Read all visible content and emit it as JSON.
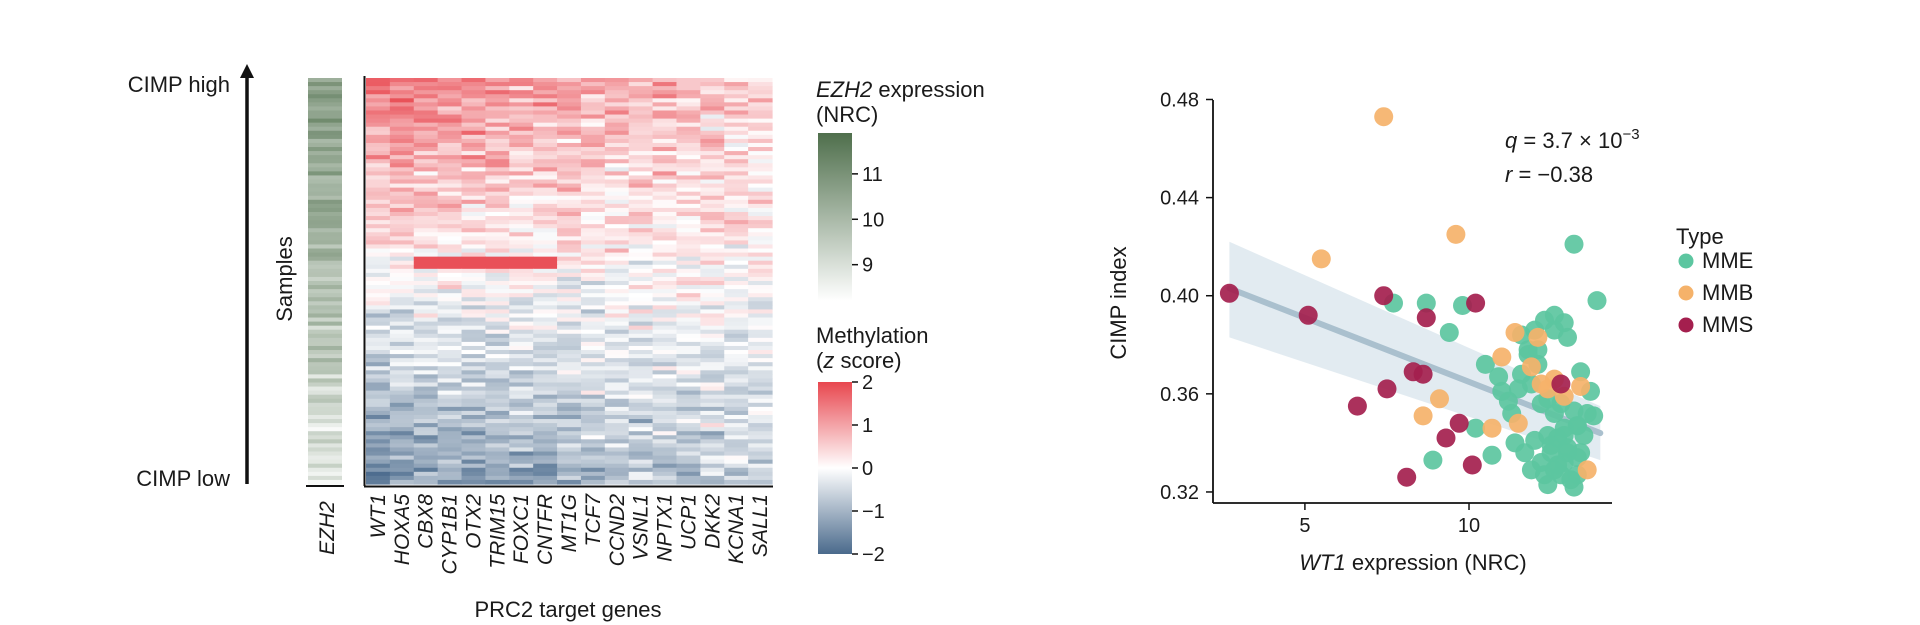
{
  "chart_data": [
    {
      "type": "heatmap",
      "row_axis_label": "Samples",
      "top_label": "CIMP high",
      "bottom_label": "CIMP low",
      "annotation_column_label": "EZH2",
      "xlabel": "PRC2 target genes",
      "genes": [
        "WT1",
        "HOXA5",
        "CBX8",
        "CYP1B1",
        "OTX2",
        "TRIM15",
        "FOXC1",
        "CNTFR",
        "MT1G",
        "TCF7",
        "CCND2",
        "VSNL1",
        "NPTX1",
        "UCP1",
        "DKK2",
        "KCNA1",
        "SALL1"
      ],
      "expression_legend": {
        "title_gene": "EZH2",
        "title_rest": " expression",
        "title_unit": "(NRC)",
        "ticks": [
          "11",
          "10",
          "9"
        ],
        "tick_values": [
          11,
          10,
          9
        ],
        "range": [
          8.2,
          11.9
        ],
        "colors": [
          "#ffffff",
          "#4f6f4c"
        ]
      },
      "methylation_legend": {
        "title_line1": "Methylation",
        "title_open": "(",
        "title_z": "z",
        "title_close": " score)",
        "ticks": [
          "2",
          "1",
          "0",
          "−1",
          "−2"
        ],
        "tick_values": [
          2,
          1,
          0,
          -1,
          -2
        ],
        "range": [
          -2,
          2
        ],
        "colors": [
          "#4a6a8c",
          "#ffffff",
          "#e8474f"
        ]
      }
    },
    {
      "type": "scatter",
      "xlabel_gene": "WT1",
      "xlabel_rest": " expression (NRC)",
      "ylabel": "CIMP index",
      "xlim": [
        2.2,
        14.6
      ],
      "ylim": [
        0.3155,
        0.4855
      ],
      "xticks": [
        5,
        10
      ],
      "xtick_labels": [
        "5",
        "10"
      ],
      "yticks": [
        0.32,
        0.36,
        0.4,
        0.44,
        0.48
      ],
      "ytick_labels": [
        "0.32",
        "0.36",
        "0.40",
        "0.44",
        "0.48"
      ],
      "stats": {
        "q_label": "q",
        "q_text": " = 3.7 × 10",
        "q_exp": "−3",
        "r_label": "r",
        "r_text": " = −0.38"
      },
      "legend_title": "Type",
      "series": [
        {
          "name": "MME",
          "color": "#5cc6a0",
          "x": [
            7.7,
            8.7,
            9.4,
            9.8,
            10.5,
            10.9,
            11.2,
            11.5,
            11.8,
            12.0,
            12.3,
            12.6,
            12.9,
            13.2,
            13.4,
            13.7,
            13.9,
            13.6,
            13.3,
            12.8,
            12.4,
            12.1,
            11.8,
            11.6,
            11.3,
            11.0,
            11.9,
            12.2,
            12.6,
            12.9,
            13.2,
            13.5,
            13.8,
            12.4,
            12.7,
            13.0,
            13.3,
            11.7,
            12.0,
            12.5,
            12.9,
            13.3,
            12.2,
            12.6,
            13.0,
            13.4,
            11.9,
            12.3,
            12.7,
            13.1,
            12.4,
            12.8,
            13.2,
            12.5,
            12.9,
            13.3,
            10.2,
            10.7,
            11.4,
            8.9,
            12.6,
            13.0,
            11.6,
            12.1
          ],
          "y": [
            0.397,
            0.397,
            0.385,
            0.396,
            0.372,
            0.367,
            0.357,
            0.362,
            0.378,
            0.386,
            0.39,
            0.392,
            0.389,
            0.421,
            0.369,
            0.361,
            0.398,
            0.352,
            0.347,
            0.356,
            0.358,
            0.372,
            0.376,
            0.368,
            0.352,
            0.361,
            0.364,
            0.356,
            0.352,
            0.346,
            0.353,
            0.343,
            0.351,
            0.343,
            0.342,
            0.336,
            0.347,
            0.336,
            0.341,
            0.336,
            0.332,
            0.334,
            0.332,
            0.329,
            0.338,
            0.336,
            0.329,
            0.327,
            0.331,
            0.325,
            0.323,
            0.327,
            0.322,
            0.339,
            0.343,
            0.327,
            0.346,
            0.335,
            0.34,
            0.333,
            0.386,
            0.383,
            0.384,
            0.378
          ],
          "legend_label": "MME"
        },
        {
          "name": "MMB",
          "color": "#f5b26a",
          "x": [
            7.4,
            9.6,
            5.5,
            11.4,
            12.1,
            11.0,
            13.4,
            12.6,
            11.9,
            12.9,
            13.6,
            12.4,
            9.1,
            10.7,
            11.5,
            8.6,
            12.2
          ],
          "y": [
            0.473,
            0.425,
            0.415,
            0.385,
            0.383,
            0.375,
            0.363,
            0.366,
            0.371,
            0.359,
            0.329,
            0.362,
            0.358,
            0.346,
            0.348,
            0.351,
            0.364
          ],
          "legend_label": "MMB"
        },
        {
          "name": "MMS",
          "color": "#a41f4e",
          "x": [
            2.7,
            5.1,
            7.4,
            10.2,
            8.7,
            8.3,
            7.5,
            6.6,
            9.3,
            9.7,
            10.1,
            8.1,
            12.8,
            8.6
          ],
          "y": [
            0.401,
            0.392,
            0.4,
            0.397,
            0.391,
            0.369,
            0.362,
            0.355,
            0.342,
            0.348,
            0.331,
            0.326,
            0.364,
            0.368
          ],
          "legend_label": "MMS"
        }
      ],
      "fit": {
        "type": "linear",
        "x_range": [
          2.7,
          14.0
        ],
        "y_at_range": [
          0.403,
          0.344
        ],
        "band_start": [
          0.383,
          0.422
        ],
        "band_end": [
          0.333,
          0.355
        ],
        "line_color": "#aac0ce",
        "band_color": "#dde8ef"
      }
    }
  ]
}
